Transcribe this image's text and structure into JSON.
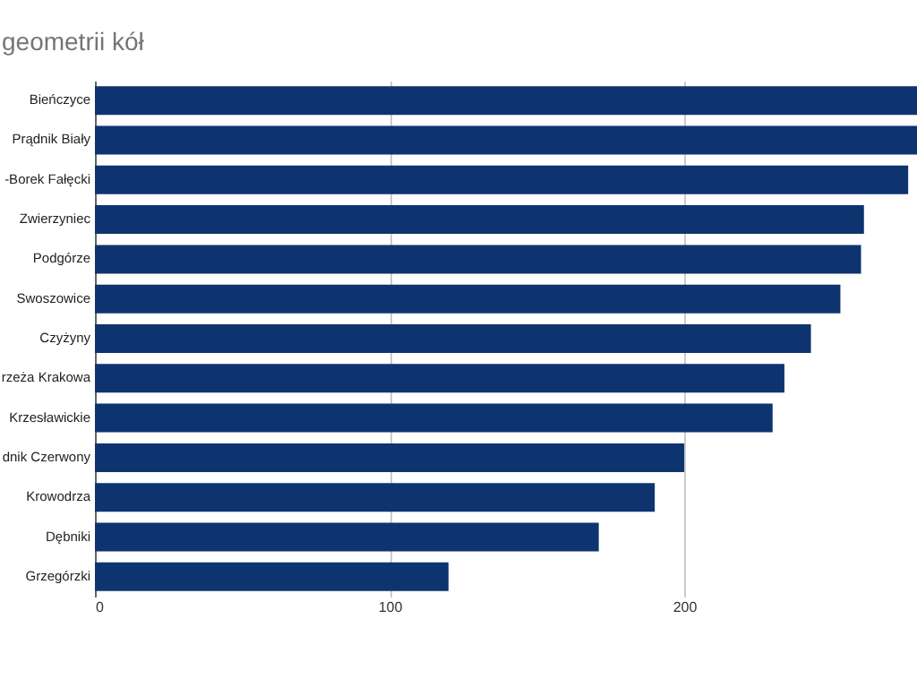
{
  "chart_data": {
    "type": "bar",
    "orientation": "horizontal",
    "title": "geometrii kół",
    "categories": [
      "Bieńczyce",
      "Prądnik Biały",
      "-Borek Fałęcki",
      "Zwierzyniec",
      "Podgórze",
      "Swoszowice",
      "Czyżyny",
      "rzeża Krakowa",
      "Krzesławickie",
      "dnik Czerwony",
      "Krowodrza",
      "Dębniki",
      "Grzegórzki"
    ],
    "values": [
      279,
      279,
      276,
      261,
      260,
      253,
      243,
      234,
      230,
      200,
      190,
      171,
      120
    ],
    "color": "#0e3470",
    "xlim": [
      0,
      279
    ],
    "xticks": [
      0,
      100,
      200
    ],
    "grid": "x"
  }
}
